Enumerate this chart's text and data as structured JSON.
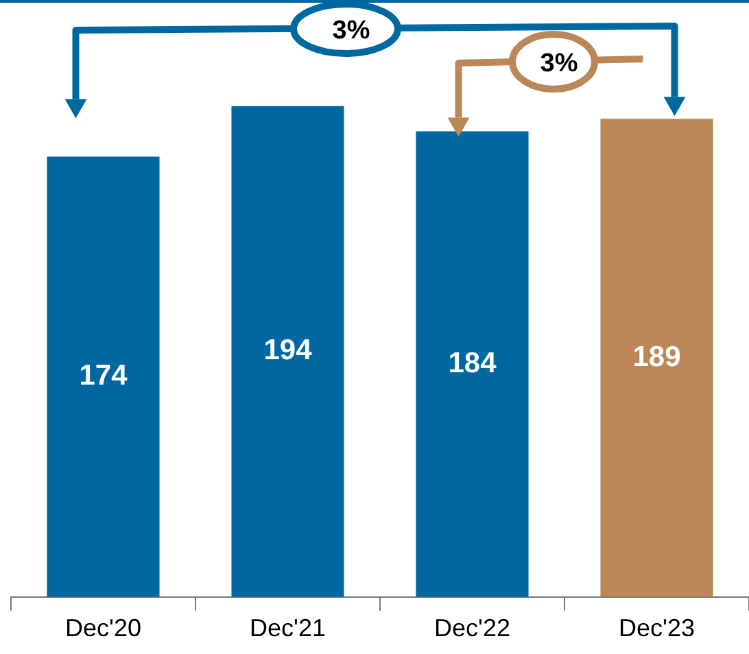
{
  "chart_data": {
    "type": "bar",
    "categories": [
      "Dec'20",
      "Dec'21",
      "Dec'22",
      "Dec'23"
    ],
    "values": [
      174,
      194,
      184,
      189
    ],
    "colors": [
      "#0068a1",
      "#0068a1",
      "#0068a1",
      "#bb8759"
    ],
    "data_labels": true,
    "annotations": [
      "3%",
      "3%"
    ]
  }
}
